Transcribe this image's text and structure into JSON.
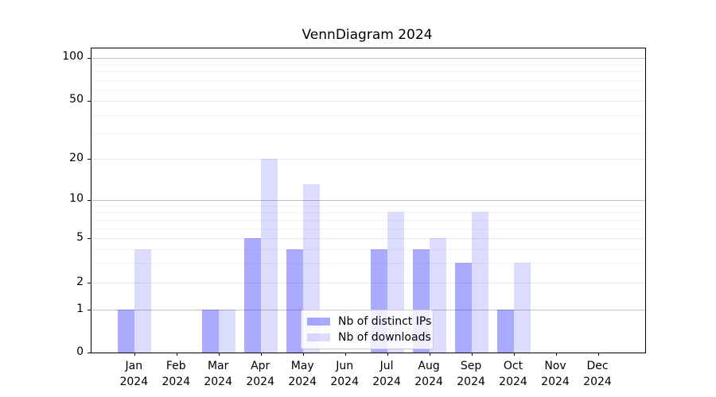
{
  "figure": {
    "title": "VennDiagram 2024"
  },
  "chart_data": {
    "type": "bar",
    "title": "VennDiagram 2024",
    "categories": [
      "Jan",
      "Feb",
      "Mar",
      "Apr",
      "May",
      "Jun",
      "Jul",
      "Aug",
      "Sep",
      "Oct",
      "Nov",
      "Dec"
    ],
    "category_year": "2024",
    "series": [
      {
        "name": "Nb of distinct IPs",
        "color": "#aaaaff",
        "values": [
          1,
          0,
          1,
          5,
          4,
          0,
          4,
          4,
          3,
          1,
          0,
          0
        ]
      },
      {
        "name": "Nb of downloads",
        "color": "#dcdcff",
        "values": [
          4,
          0,
          1,
          20,
          13,
          0,
          8,
          5,
          8,
          3,
          0,
          0
        ]
      }
    ],
    "yticks": [
      0,
      1,
      2,
      5,
      10,
      20,
      50,
      100
    ],
    "ylim": [
      0,
      100
    ],
    "yscale": "log-like (labeled 1-2-5 sequence, linear segment 0-1)",
    "grid": "horizontal major and log-minor gridlines",
    "legend_position": "lower center",
    "major_gridline_color": "#c2c2c2",
    "minor_gridline_color": "#f4f4f4",
    "labeled_gridline_color": "#ebebeb"
  }
}
